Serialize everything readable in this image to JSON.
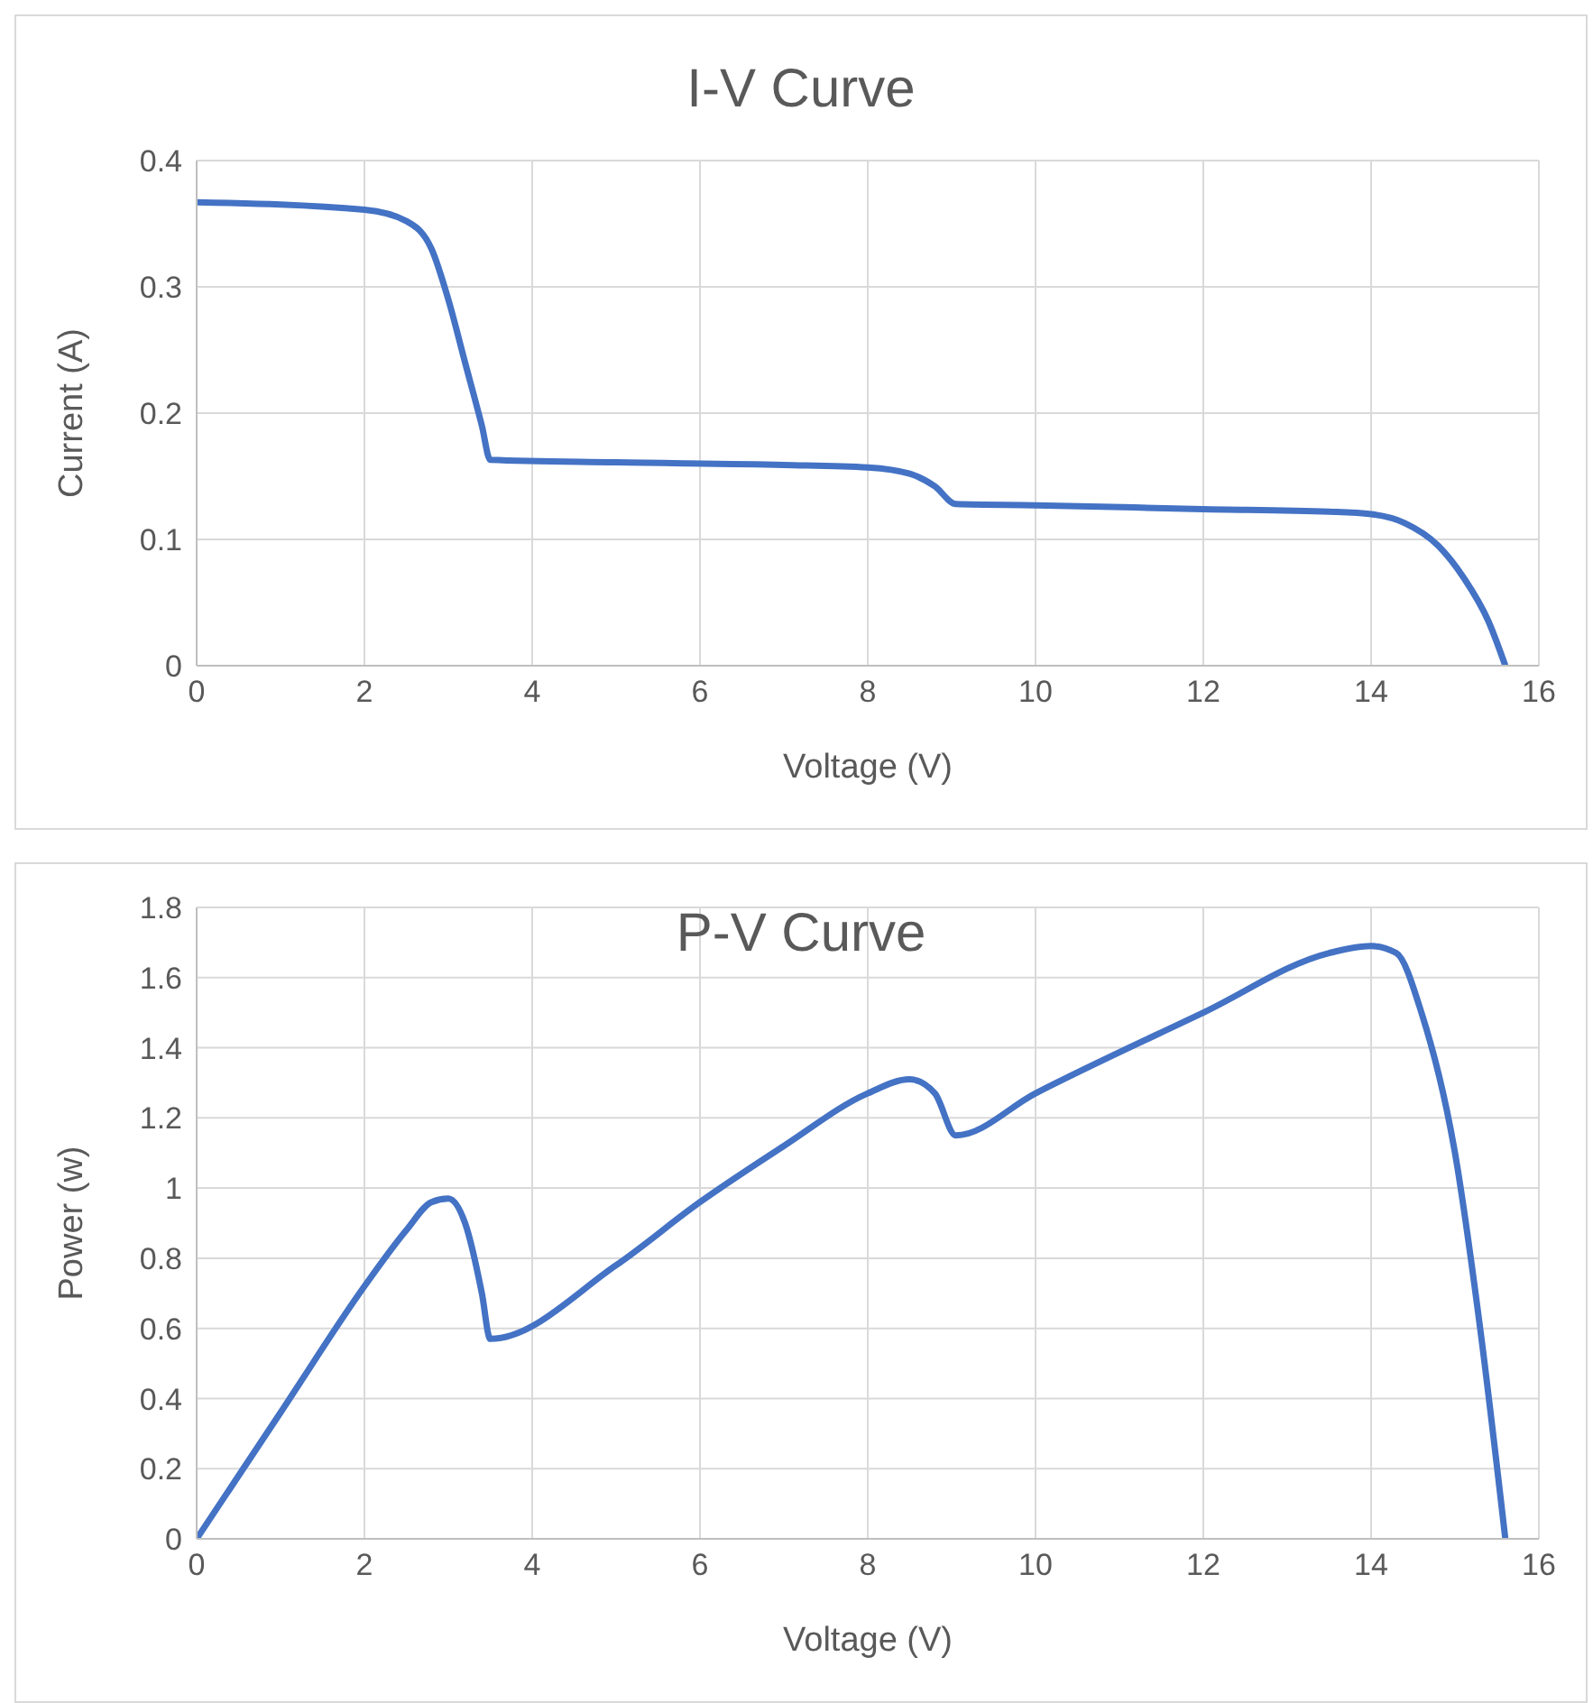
{
  "chart_data": [
    {
      "type": "line",
      "title": "I-V Curve",
      "xlabel": "Voltage (V)",
      "ylabel": "Current (A)",
      "xlim": [
        0,
        16
      ],
      "xticks": [
        0,
        2,
        4,
        6,
        8,
        10,
        12,
        14,
        16
      ],
      "ylim": [
        0,
        0.4
      ],
      "yticks": [
        0,
        0.1,
        0.2,
        0.3,
        0.4
      ],
      "grid": true,
      "legend": false,
      "marker": "none",
      "x": [
        0,
        2,
        2.5,
        2.8,
        3.0,
        3.2,
        3.4,
        3.5,
        5,
        7,
        8,
        8.5,
        8.8,
        9.05,
        10,
        12,
        13.5,
        14,
        14.4,
        14.8,
        15.1,
        15.4,
        15.6
      ],
      "series": [
        {
          "color": "#4472c4",
          "values": [
            0.367,
            0.361,
            0.352,
            0.33,
            0.29,
            0.24,
            0.19,
            0.163,
            0.161,
            0.159,
            0.157,
            0.152,
            0.142,
            0.128,
            0.127,
            0.124,
            0.122,
            0.12,
            0.113,
            0.095,
            0.07,
            0.035,
            0
          ]
        }
      ]
    },
    {
      "type": "line",
      "title": "P-V Curve",
      "xlabel": "Voltage (V)",
      "ylabel": "Power (w)",
      "xlim": [
        0,
        16
      ],
      "xticks": [
        0,
        2,
        4,
        6,
        8,
        10,
        12,
        14,
        16
      ],
      "ylim": [
        0,
        1.8
      ],
      "yticks": [
        0,
        0.2,
        0.4,
        0.6,
        0.8,
        1,
        1.2,
        1.4,
        1.6,
        1.8
      ],
      "grid": true,
      "legend": false,
      "marker": "none",
      "x": [
        0,
        1,
        2,
        2.5,
        2.8,
        3.0,
        3.2,
        3.4,
        3.5,
        5,
        6,
        7,
        8,
        8.5,
        8.8,
        9.05,
        10,
        12,
        13.5,
        14,
        14.3,
        14.6,
        15,
        15.3,
        15.6
      ],
      "series": [
        {
          "color": "#4472c4",
          "values": [
            0,
            0.36,
            0.72,
            0.88,
            0.96,
            0.97,
            0.9,
            0.7,
            0.57,
            0.78,
            0.96,
            1.12,
            1.27,
            1.31,
            1.27,
            1.15,
            1.27,
            1.5,
            1.67,
            1.69,
            1.67,
            1.5,
            1.1,
            0.6,
            0
          ]
        }
      ]
    }
  ]
}
